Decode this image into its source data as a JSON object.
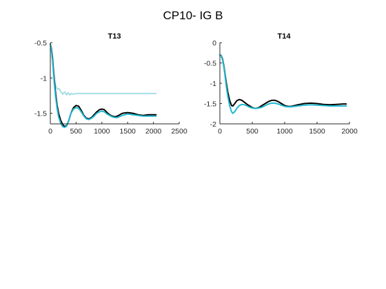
{
  "figure": {
    "title": "CP10- IG B"
  },
  "chart_data": [
    {
      "type": "line",
      "title": "T13",
      "xlabel": "",
      "ylabel": "",
      "xlim": [
        0,
        2500
      ],
      "ylim": [
        -1.65,
        -0.5
      ],
      "xticks": [
        0,
        500,
        1000,
        1500,
        2000,
        2500
      ],
      "xtick_labels": [
        "0",
        "500",
        "1000",
        "1500",
        "2000",
        "2500"
      ],
      "yticks": [
        -0.5,
        -1,
        -1.5
      ],
      "ytick_labels": [
        "-0.5",
        "-1",
        "-1.5"
      ],
      "grid": false,
      "series": [
        {
          "color": "#a6dde6",
          "x": [
            0,
            20,
            40,
            60,
            80,
            100,
            120,
            140,
            160,
            180,
            200,
            220,
            240,
            260,
            280,
            300,
            320,
            340,
            360,
            380,
            400,
            450,
            500,
            600,
            800,
            1000,
            1500,
            2050
          ],
          "y": [
            -0.52,
            -0.6,
            -0.72,
            -0.88,
            -1.02,
            -1.1,
            -1.14,
            -1.16,
            -1.15,
            -1.16,
            -1.19,
            -1.21,
            -1.23,
            -1.21,
            -1.2,
            -1.22,
            -1.24,
            -1.21,
            -1.22,
            -1.24,
            -1.22,
            -1.23,
            -1.22,
            -1.22,
            -1.22,
            -1.22,
            -1.22,
            -1.22
          ]
        },
        {
          "color": "#000000",
          "x": [
            0,
            20,
            40,
            60,
            80,
            100,
            130,
            160,
            200,
            240,
            280,
            320,
            360,
            400,
            450,
            500,
            550,
            600,
            650,
            700,
            750,
            800,
            850,
            900,
            950,
            1000,
            1050,
            1100,
            1150,
            1200,
            1250,
            1300,
            1400,
            1500,
            1600,
            1700,
            1800,
            1900,
            2000,
            2050
          ],
          "y": [
            -0.52,
            -0.58,
            -0.7,
            -0.88,
            -1.05,
            -1.2,
            -1.38,
            -1.5,
            -1.6,
            -1.66,
            -1.69,
            -1.67,
            -1.6,
            -1.5,
            -1.42,
            -1.39,
            -1.4,
            -1.46,
            -1.53,
            -1.57,
            -1.58,
            -1.56,
            -1.52,
            -1.48,
            -1.45,
            -1.44,
            -1.45,
            -1.49,
            -1.52,
            -1.54,
            -1.55,
            -1.54,
            -1.5,
            -1.49,
            -1.5,
            -1.52,
            -1.53,
            -1.52,
            -1.52,
            -1.52
          ]
        },
        {
          "color": "#1fb8cf",
          "x": [
            0,
            20,
            40,
            60,
            80,
            100,
            130,
            160,
            200,
            240,
            280,
            320,
            360,
            400,
            450,
            500,
            550,
            600,
            650,
            700,
            750,
            800,
            850,
            900,
            950,
            1000,
            1050,
            1100,
            1150,
            1200,
            1250,
            1300,
            1400,
            1500,
            1600,
            1700,
            1800,
            1900,
            2000,
            2050
          ],
          "y": [
            -0.52,
            -0.6,
            -0.74,
            -0.92,
            -1.1,
            -1.25,
            -1.42,
            -1.55,
            -1.64,
            -1.69,
            -1.7,
            -1.68,
            -1.6,
            -1.5,
            -1.44,
            -1.42,
            -1.43,
            -1.48,
            -1.54,
            -1.58,
            -1.59,
            -1.57,
            -1.54,
            -1.5,
            -1.48,
            -1.47,
            -1.48,
            -1.51,
            -1.53,
            -1.55,
            -1.56,
            -1.56,
            -1.53,
            -1.51,
            -1.52,
            -1.53,
            -1.54,
            -1.54,
            -1.54,
            -1.54
          ]
        }
      ]
    },
    {
      "type": "line",
      "title": "T14",
      "xlabel": "",
      "ylabel": "",
      "xlim": [
        0,
        2000
      ],
      "ylim": [
        -2,
        0
      ],
      "xticks": [
        0,
        500,
        1000,
        1500,
        2000
      ],
      "xtick_labels": [
        "0",
        "500",
        "1000",
        "1500",
        "2000"
      ],
      "yticks": [
        0,
        -0.5,
        -1,
        -1.5,
        -2
      ],
      "ytick_labels": [
        "0",
        "-0.5",
        "-1",
        "-1.5",
        "-2"
      ],
      "grid": false,
      "series": [
        {
          "color": "#000000",
          "x": [
            0,
            20,
            40,
            60,
            80,
            100,
            120,
            150,
            180,
            200,
            230,
            260,
            300,
            340,
            380,
            420,
            460,
            500,
            550,
            600,
            650,
            700,
            750,
            800,
            850,
            900,
            950,
            1000,
            1050,
            1100,
            1200,
            1300,
            1400,
            1500,
            1600,
            1700,
            1800,
            1900,
            1950
          ],
          "y": [
            -0.3,
            -0.32,
            -0.4,
            -0.55,
            -0.78,
            -1.0,
            -1.2,
            -1.42,
            -1.55,
            -1.56,
            -1.5,
            -1.43,
            -1.4,
            -1.42,
            -1.47,
            -1.52,
            -1.56,
            -1.6,
            -1.62,
            -1.6,
            -1.55,
            -1.5,
            -1.45,
            -1.42,
            -1.42,
            -1.45,
            -1.5,
            -1.55,
            -1.57,
            -1.57,
            -1.53,
            -1.5,
            -1.49,
            -1.5,
            -1.52,
            -1.53,
            -1.52,
            -1.51,
            -1.51
          ]
        },
        {
          "color": "#1fb8cf",
          "x": [
            0,
            20,
            40,
            60,
            80,
            100,
            120,
            150,
            180,
            200,
            230,
            260,
            300,
            340,
            380,
            420,
            460,
            500,
            550,
            600,
            650,
            700,
            750,
            800,
            850,
            900,
            950,
            1000,
            1050,
            1100,
            1200,
            1300,
            1400,
            1500,
            1600,
            1700,
            1800,
            1900,
            1950
          ],
          "y": [
            -0.3,
            -0.33,
            -0.42,
            -0.58,
            -0.82,
            -1.08,
            -1.3,
            -1.55,
            -1.7,
            -1.74,
            -1.7,
            -1.62,
            -1.55,
            -1.52,
            -1.53,
            -1.56,
            -1.59,
            -1.61,
            -1.62,
            -1.61,
            -1.59,
            -1.55,
            -1.51,
            -1.49,
            -1.49,
            -1.51,
            -1.54,
            -1.57,
            -1.58,
            -1.58,
            -1.56,
            -1.54,
            -1.53,
            -1.54,
            -1.55,
            -1.56,
            -1.56,
            -1.56,
            -1.56
          ]
        }
      ]
    }
  ]
}
